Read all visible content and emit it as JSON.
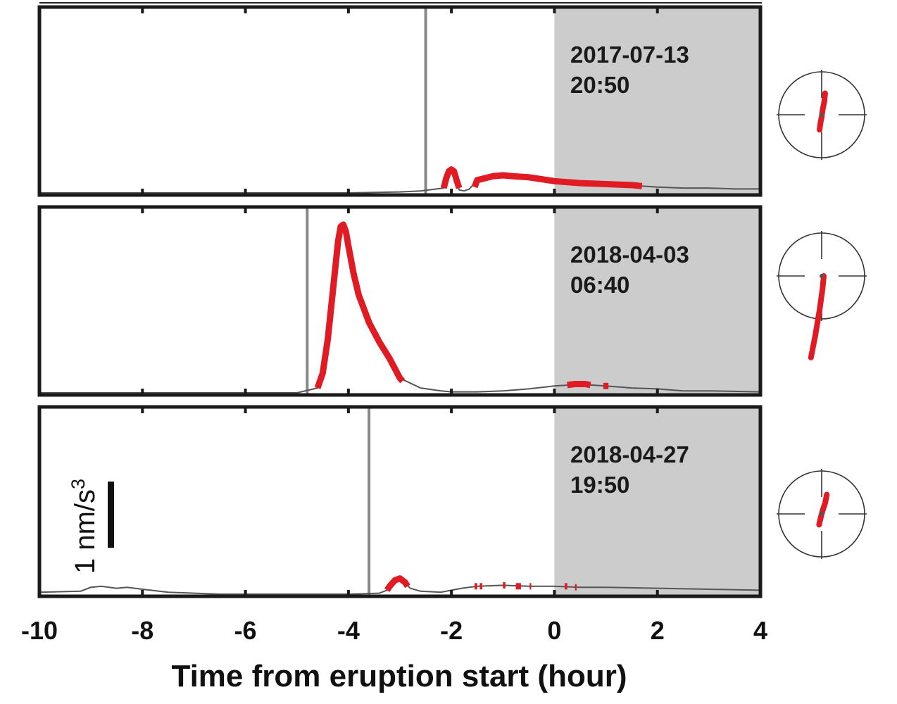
{
  "chart_data": {
    "type": "line",
    "xlabel": "Time from eruption start (hour)",
    "xlim": [
      -10,
      4
    ],
    "x_ticks": [
      "-10",
      "-8",
      "-6",
      "-4",
      "-2",
      "0",
      "2",
      "4"
    ],
    "x_tick_values": [
      -10,
      -8,
      -6,
      -4,
      -2,
      0,
      2,
      4
    ],
    "shaded_region": [
      0,
      4
    ],
    "scale_bar": {
      "label": "1 nm/s",
      "superscript": "3",
      "value": 1,
      "unit": "nm/s^3"
    },
    "ylim": [
      0,
      1.9
    ],
    "colors": {
      "highlight": "#e01b24",
      "trace": "#555555",
      "marker": "#888888",
      "shade": "#cccccc",
      "frame": "#1a1a1a"
    },
    "panels": [
      {
        "label_date": "2017-07-13",
        "label_time": "20:50",
        "onset_marker_x": -2.5,
        "trace": {
          "x": [
            -10,
            -9,
            -8,
            -7,
            -6,
            -5,
            -4,
            -3,
            -2.6,
            -2.15,
            -2.1,
            -2.05,
            -2.0,
            -1.95,
            -1.9,
            -1.85,
            -1.75,
            -1.65,
            -1.5,
            -1.2,
            -1.0,
            -0.8,
            -0.5,
            0,
            0.5,
            1.0,
            1.5,
            1.7,
            2.0,
            2.5,
            3.0,
            3.5,
            4.0
          ],
          "y": [
            0,
            0,
            0,
            0,
            0,
            0,
            0,
            0.01,
            0.02,
            0.05,
            0.15,
            0.22,
            0.24,
            0.22,
            0.13,
            0.03,
            0.02,
            0.04,
            0.13,
            0.17,
            0.18,
            0.17,
            0.16,
            0.12,
            0.1,
            0.09,
            0.08,
            0.07,
            0.06,
            0.05,
            0.05,
            0.04,
            0.04
          ]
        },
        "highlight_segments": [
          {
            "x": [
              -2.15,
              -2.1,
              -2.05,
              -2.0,
              -1.95,
              -1.9,
              -1.85
            ],
            "y": [
              0.05,
              0.15,
              0.22,
              0.24,
              0.22,
              0.13,
              0.05
            ]
          },
          {
            "x": [
              -1.55,
              -1.5,
              -1.2,
              -1.0,
              -0.8,
              -0.5,
              0,
              0.5,
              1.0,
              1.5,
              1.7
            ],
            "y": [
              0.06,
              0.13,
              0.17,
              0.18,
              0.17,
              0.16,
              0.12,
              0.1,
              0.09,
              0.08,
              0.07
            ]
          }
        ],
        "particle_motion": [
          [
            0.08,
            0.5
          ],
          [
            0.06,
            0.3
          ],
          [
            0.02,
            0.1
          ],
          [
            0,
            -0.05
          ],
          [
            -0.03,
            -0.2
          ],
          [
            -0.05,
            -0.35
          ]
        ]
      },
      {
        "label_date": "2018-04-03",
        "label_time": "06:40",
        "onset_marker_x": -4.8,
        "trace": {
          "x": [
            -10,
            -9,
            -8,
            -7,
            -6,
            -5,
            -4.6,
            -4.5,
            -4.4,
            -4.3,
            -4.2,
            -4.15,
            -4.1,
            -4.05,
            -4.0,
            -3.9,
            -3.8,
            -3.6,
            -3.4,
            -3.2,
            -3.0,
            -2.6,
            -2.2,
            -2.0,
            -1.5,
            -1.0,
            -0.5,
            0,
            0.3,
            0.5,
            0.7,
            1.0,
            1.5,
            2.0,
            2.5,
            3.0,
            4.0
          ],
          "y": [
            0,
            0,
            0,
            0,
            0,
            0,
            0.05,
            0.2,
            0.55,
            1.05,
            1.55,
            1.7,
            1.72,
            1.65,
            1.5,
            1.22,
            1.0,
            0.72,
            0.52,
            0.35,
            0.15,
            0.05,
            0.02,
            0.01,
            0.01,
            0.02,
            0.04,
            0.07,
            0.08,
            0.09,
            0.08,
            0.07,
            0.05,
            0.04,
            0.02,
            0.02,
            0.01
          ]
        },
        "highlight_segments": [
          {
            "x": [
              -4.6,
              -4.5,
              -4.4,
              -4.3,
              -4.2,
              -4.15,
              -4.1,
              -4.05,
              -4.0,
              -3.9,
              -3.8,
              -3.6,
              -3.4,
              -3.2,
              -3.0,
              -2.95
            ],
            "y": [
              0.05,
              0.2,
              0.55,
              1.05,
              1.55,
              1.7,
              1.72,
              1.65,
              1.5,
              1.22,
              1.0,
              0.72,
              0.52,
              0.35,
              0.15,
              0.12
            ]
          },
          {
            "x": [
              0.25,
              0.4,
              0.5,
              0.6,
              0.7
            ],
            "y": [
              0.08,
              0.09,
              0.09,
              0.09,
              0.08
            ]
          },
          {
            "x": [
              0.95,
              1.05
            ],
            "y": [
              0.07,
              0.07
            ]
          }
        ],
        "particle_motion": [
          [
            0.05,
            0.0
          ],
          [
            0.02,
            -0.3
          ],
          [
            -0.05,
            -0.8
          ],
          [
            -0.15,
            -1.4
          ],
          [
            -0.25,
            -1.9
          ]
        ]
      },
      {
        "label_date": "2018-04-27",
        "label_time": "19:50",
        "onset_marker_x": -3.6,
        "trace": {
          "x": [
            -10,
            -9.2,
            -9.0,
            -8.8,
            -8.5,
            -8.3,
            -8.0,
            -7.5,
            -7.0,
            -6.5,
            -6.0,
            -5.0,
            -4.0,
            -3.4,
            -3.2,
            -3.1,
            -3.0,
            -2.9,
            -2.8,
            -2.6,
            -2.2,
            -2.0,
            -1.8,
            -1.5,
            -1.0,
            -0.5,
            0,
            0.5,
            1.0,
            2.0,
            3.0,
            4.0
          ],
          "y": [
            0.02,
            0.03,
            0.07,
            0.08,
            0.06,
            0.07,
            0.05,
            0.02,
            0.01,
            0.0,
            0.0,
            0.0,
            0.0,
            0.01,
            0.05,
            0.14,
            0.16,
            0.12,
            0.06,
            0.03,
            0.02,
            0.04,
            0.06,
            0.08,
            0.09,
            0.08,
            0.08,
            0.07,
            0.07,
            0.06,
            0.05,
            0.04
          ]
        },
        "highlight_segments": [
          {
            "x": [
              -3.25,
              -3.2,
              -3.1,
              -3.0,
              -2.9,
              -2.85
            ],
            "y": [
              0.04,
              0.08,
              0.14,
              0.16,
              0.12,
              0.08
            ]
          },
          {
            "x": [
              -1.55,
              -1.5
            ],
            "y": [
              0.08,
              0.08
            ]
          },
          {
            "x": [
              -1.45,
              -1.4
            ],
            "y": [
              0.08,
              0.08
            ]
          },
          {
            "x": [
              -1.0,
              -0.95
            ],
            "y": [
              0.09,
              0.09
            ]
          },
          {
            "x": [
              -0.75,
              -0.65
            ],
            "y": [
              0.08,
              0.08
            ]
          },
          {
            "x": [
              -0.48,
              -0.45
            ],
            "y": [
              0.08,
              0.08
            ]
          },
          {
            "x": [
              0.2,
              0.25
            ],
            "y": [
              0.08,
              0.08
            ]
          },
          {
            "x": [
              0.4,
              0.43
            ],
            "y": [
              0.07,
              0.07
            ]
          }
        ],
        "particle_motion": [
          [
            0.12,
            0.45
          ],
          [
            0.08,
            0.25
          ],
          [
            0.03,
            0.1
          ],
          [
            0,
            0
          ],
          [
            -0.03,
            -0.12
          ],
          [
            -0.06,
            -0.25
          ]
        ]
      }
    ]
  }
}
